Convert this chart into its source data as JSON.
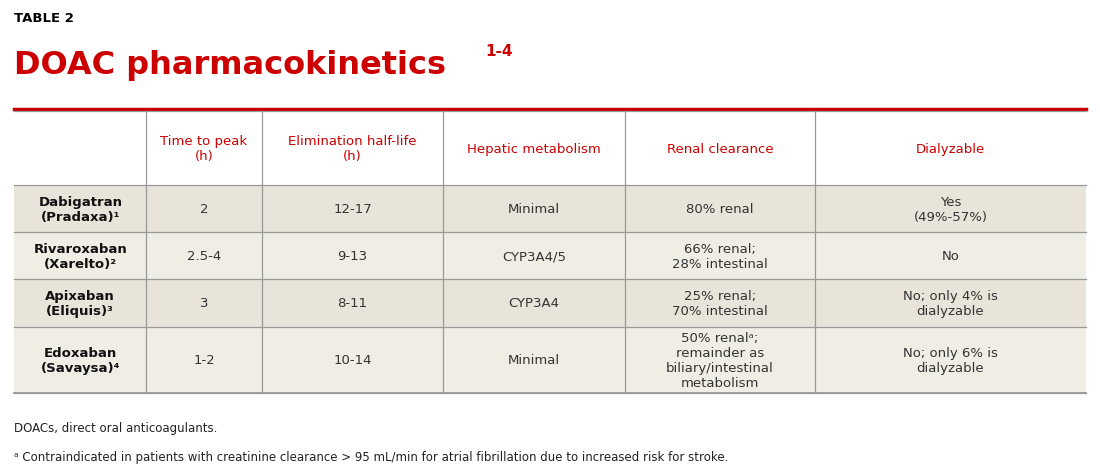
{
  "table_title_label": "TABLE 2",
  "table_title": "DOAC pharmacokinetics",
  "title_superscript": "1-4",
  "title_color": "#cc0000",
  "title_label_color": "#000000",
  "background_color": "#ffffff",
  "header_text_color": "#cc0000",
  "col_headers": [
    "Time to peak\n(h)",
    "Elimination half-life\n(h)",
    "Hepatic metabolism",
    "Renal clearance",
    "Dialyzable"
  ],
  "row_headers": [
    "Dabigatran\n(Pradaxa)¹",
    "Rivaroxaban\n(Xarelto)²",
    "Apixaban\n(Eliquis)³",
    "Edoxaban\n(Savaysa)⁴"
  ],
  "cell_data": [
    [
      "2",
      "12-17",
      "Minimal",
      "80% renal",
      "Yes\n(49%-57%)"
    ],
    [
      "2.5-4",
      "9-13",
      "CYP3A4/5",
      "66% renal;\n28% intestinal",
      "No"
    ],
    [
      "3",
      "8-11",
      "CYP3A4",
      "25% renal;\n70% intestinal",
      "No; only 4% is\ndialyzable"
    ],
    [
      "1-2",
      "10-14",
      "Minimal",
      "50% renalᵃ;\nremainder as\nbiliary/intestinal\nmetabolism",
      "No; only 6% is\ndialyzable"
    ]
  ],
  "footnote1": "DOACs, direct oral anticoagulants.",
  "footnote2": "ᵃ Contraindicated in patients with creatinine clearance > 95 mL/min for atrial fibrillation due to increased risk for stroke.",
  "divider_color": "#cc0000",
  "grid_color": "#999999",
  "cell_text_color": "#333333",
  "row_header_color": "#111111",
  "even_row_color": "#e8e4da",
  "odd_row_color": "#f0ede5",
  "header_row_color": "#ffffff"
}
